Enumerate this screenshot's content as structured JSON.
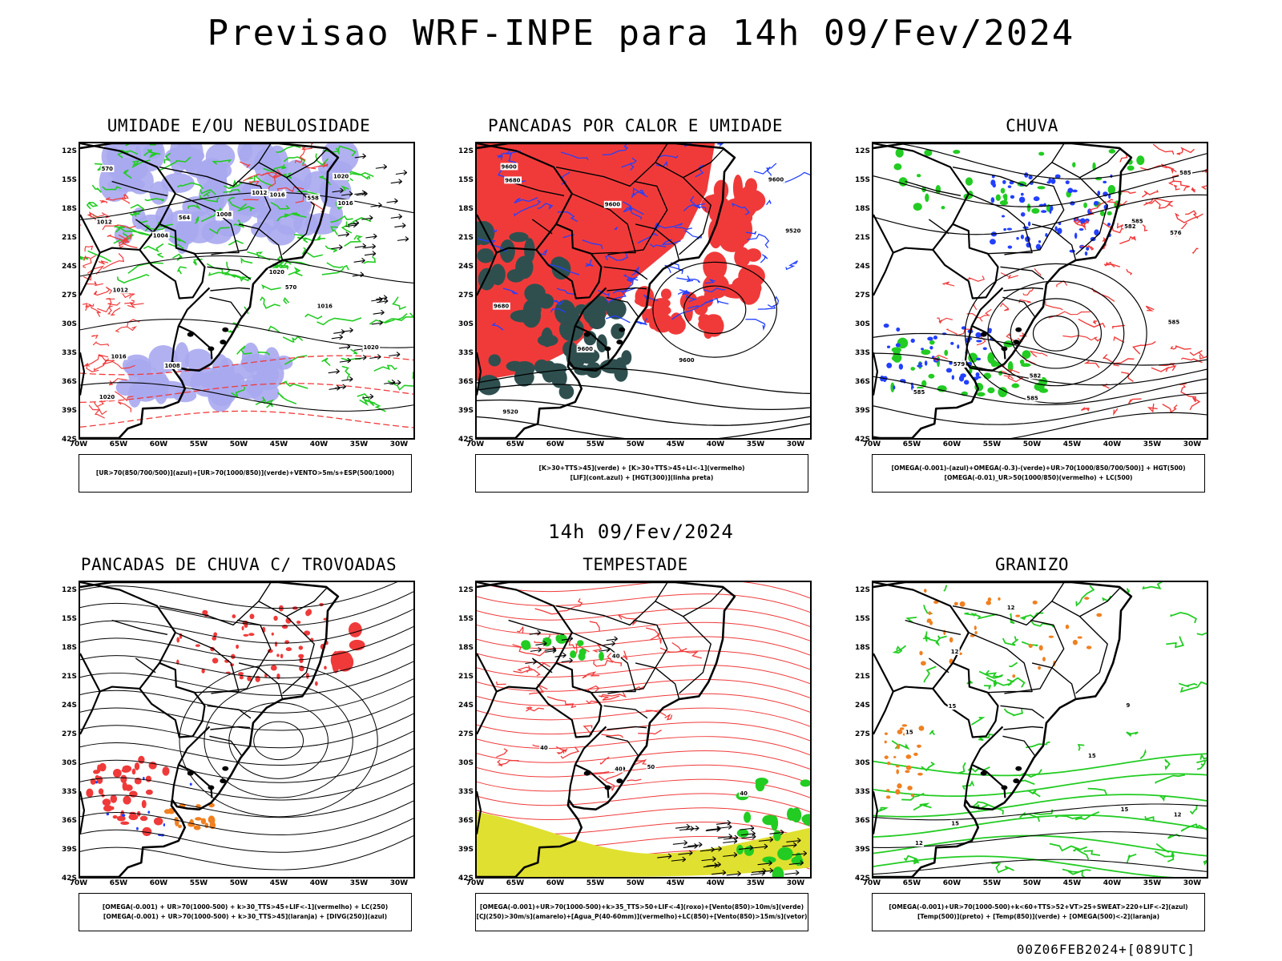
{
  "title": "Previsao WRF-INPE  para 14h 09/Fev/2024",
  "mid_title": "14h 09/Fev/2024",
  "footer": "00Z06FEB2024+[089UTC]",
  "axes": {
    "lat": [
      "12S",
      "15S",
      "18S",
      "21S",
      "24S",
      "27S",
      "30S",
      "33S",
      "36S",
      "39S",
      "42S"
    ],
    "lon": [
      "70W",
      "65W",
      "60W",
      "55W",
      "50W",
      "45W",
      "40W",
      "35W",
      "30W"
    ]
  },
  "colors": {
    "red": "#f03a3a",
    "green": "#22cc22",
    "blue": "#2240ff",
    "lavender": "#a8a8f0",
    "darkteal": "#2f4f4f",
    "yellow": "#e0e030",
    "orange": "#f08020",
    "land": "#000000"
  },
  "panels": [
    {
      "id": "umidade",
      "title": "UMIDADE E/OU NEBULOSIDADE",
      "legend": [
        "[UR>70(850/700/500)](azul)+[UR>70(1000/850)](verde)+VENTO>5m/s+ESP(500/1000)"
      ],
      "labels": [
        "1012",
        "1008",
        "1012",
        "1008",
        "1004",
        "1016",
        "1020",
        "1020",
        "1016",
        "1012",
        "1016",
        "1020",
        "1020",
        "570",
        "570",
        "564",
        "558",
        "1016"
      ]
    },
    {
      "id": "pancadas",
      "title": "PANCADAS POR CALOR E UMIDADE",
      "legend": [
        "[K>30+TTS>45](verde) + [K>30+TTS>45+LI<-1](vermelho)",
        "[LIF](cont.azul) + [HGT(300)](linha preta)"
      ],
      "labels": [
        "9680",
        "9600",
        "9680",
        "9600",
        "9520",
        "9600",
        "9600",
        "9600",
        "9520"
      ]
    },
    {
      "id": "chuva",
      "title": "CHUVA",
      "legend": [
        "[OMEGA(-0.001)-(azul)+OMEGA(-0.3)-(verde)+UR>70(1000/850/700/500)] + HGT(500)",
        "[OMEGA(-0.01)_UR>50(1000/850)(vermelho) + LC(500)"
      ],
      "labels": [
        "585",
        "585",
        "585",
        "585",
        "582",
        "579",
        "576",
        "585",
        "582"
      ]
    },
    {
      "id": "trovoadas",
      "title": "PANCADAS DE CHUVA C/ TROVOADAS",
      "legend": [
        "[OMEGA(-0.001) + UR>70(1000-500) + k>30_TTS>45+LIF<-1](vermelho) + LC(250)",
        "[OMEGA(-0.001) + UR>70(1000-500) + k>30_TTS>45](laranja) + [DIVG(250)](azul)"
      ],
      "labels": []
    },
    {
      "id": "tempestade",
      "title": "TEMPESTADE",
      "legend": [
        "[OMEGA(-0.001)+UR>70(1000-500)+k>35_TTS>50+LIF<-4](roxo)+[Vento(850)>10m/s](verde)",
        "[CJ(250)>30m/s](amarelo)+[Agua_P(40-60mm)](vermelho)+LC(850)+[Vento(850)>15m/s](vetor)"
      ],
      "labels": [
        "40",
        "40",
        "40",
        "50",
        "40"
      ]
    },
    {
      "id": "granizo",
      "title": "GRANIZO",
      "legend": [
        "[OMEGA(-0.001)+UR>70(1000-500)+k<60+TTS>52+VT>25+SWEAT>220+LIF<-2](azul)",
        "[Temp(500)](preto) + [Temp(850)](verde) + [OMEGA(500)<-2](laranja)"
      ],
      "labels": [
        "15",
        "15",
        "15",
        "15",
        "12",
        "12",
        "15",
        "12",
        "9",
        "12"
      ]
    }
  ]
}
